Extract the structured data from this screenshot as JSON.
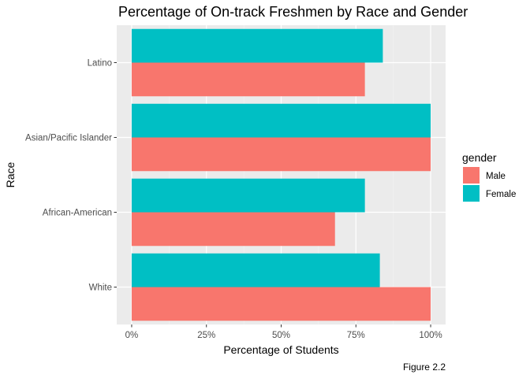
{
  "chart_data": {
    "type": "bar",
    "orientation": "horizontal",
    "title": "Percentage of On-track Freshmen by Race and Gender",
    "xlabel": "Percentage of Students",
    "ylabel": "Race",
    "caption": "Figure 2.2",
    "categories": [
      "White",
      "African-American",
      "Asian/Pacific Islander",
      "Latino"
    ],
    "series": [
      {
        "name": "Male",
        "color": "#F8766D",
        "values": [
          1.0,
          0.68,
          1.0,
          0.78
        ]
      },
      {
        "name": "Female",
        "color": "#00BFC4",
        "values": [
          0.83,
          0.78,
          1.0,
          0.84
        ]
      }
    ],
    "xlim": [
      -0.05,
      1.05
    ],
    "x_ticks": [
      0,
      0.25,
      0.5,
      0.75,
      1.0
    ],
    "x_tick_labels": [
      "0%",
      "25%",
      "50%",
      "75%",
      "100%"
    ],
    "legend": {
      "title": "gender",
      "placement": "right"
    },
    "grid": true,
    "panel_background": "#EBEBEB"
  }
}
